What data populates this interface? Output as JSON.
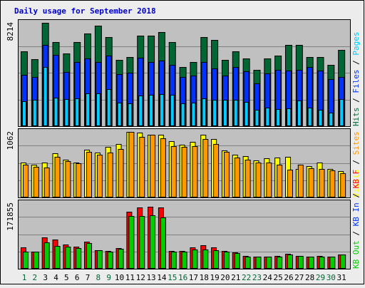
{
  "chart_data": [
    {
      "type": "bar",
      "title": "Daily usage for September 2018",
      "categories": [
        "1",
        "2",
        "3",
        "4",
        "5",
        "6",
        "7",
        "8",
        "9",
        "10",
        "11",
        "12",
        "13",
        "14",
        "15",
        "16",
        "17",
        "18",
        "19",
        "20",
        "21",
        "22",
        "23",
        "24",
        "25",
        "26",
        "27",
        "28",
        "29",
        "30",
        "31"
      ],
      "weekend_categories": [
        "1",
        "2",
        "8",
        "9",
        "15",
        "16",
        "22",
        "23",
        "29",
        "30"
      ],
      "y_max_label": "8214",
      "ylim": [
        0,
        8214
      ],
      "right_axis_labels": [
        "Pages",
        "Files",
        "Hits"
      ],
      "series": [
        {
          "name": "Hits",
          "color": "#006633",
          "values": [
            5950,
            5300,
            8214,
            6700,
            5750,
            6650,
            7350,
            8000,
            7050,
            5250,
            5450,
            7200,
            7200,
            7500,
            6650,
            4700,
            5100,
            7100,
            6850,
            5250,
            5950,
            5350,
            4450,
            5350,
            5600,
            6450,
            6450,
            5500,
            5500,
            4850,
            6050
          ]
        },
        {
          "name": "Files",
          "color": "#0033ff",
          "values": [
            4050,
            3900,
            6450,
            5650,
            4300,
            5050,
            5350,
            5050,
            5600,
            4100,
            4200,
            5400,
            5100,
            5200,
            4850,
            3900,
            4000,
            5050,
            4550,
            4000,
            4700,
            4350,
            3350,
            4150,
            4450,
            4400,
            4450,
            4650,
            4400,
            3700,
            3900
          ]
        },
        {
          "name": "Pages",
          "color": "#00ccff",
          "values": [
            1950,
            2050,
            4700,
            2200,
            2100,
            2150,
            2550,
            2550,
            2900,
            1800,
            1750,
            2400,
            2450,
            2500,
            2450,
            1750,
            1800,
            2150,
            2050,
            2050,
            2050,
            1900,
            1250,
            1450,
            1300,
            1350,
            2000,
            1400,
            1250,
            1050,
            2100
          ]
        }
      ]
    },
    {
      "type": "bar",
      "categories": [
        "1",
        "2",
        "3",
        "4",
        "5",
        "6",
        "7",
        "8",
        "9",
        "10",
        "11",
        "12",
        "13",
        "14",
        "15",
        "16",
        "17",
        "18",
        "19",
        "20",
        "21",
        "22",
        "23",
        "24",
        "25",
        "26",
        "27",
        "28",
        "29",
        "30",
        "31"
      ],
      "y_max_label": "1062",
      "ylim": [
        0,
        1062
      ],
      "right_axis_labels": [
        "Sites",
        "Visits"
      ],
      "series": [
        {
          "name": "Visits",
          "color": "#ffff00",
          "values": [
            560,
            530,
            560,
            710,
            610,
            560,
            770,
            720,
            820,
            860,
            1062,
            1050,
            1015,
            1015,
            910,
            850,
            900,
            1020,
            950,
            760,
            690,
            660,
            600,
            630,
            640,
            650,
            460,
            500,
            560,
            450,
            420
          ]
        },
        {
          "name": "Sites",
          "color": "#ff9900",
          "values": [
            520,
            490,
            480,
            650,
            580,
            550,
            730,
            690,
            720,
            780,
            1062,
            980,
            1015,
            960,
            830,
            820,
            830,
            950,
            860,
            740,
            640,
            610,
            560,
            560,
            520,
            440,
            520,
            470,
            450,
            430,
            380
          ]
        }
      ]
    },
    {
      "type": "bar",
      "categories": [
        "1",
        "2",
        "3",
        "4",
        "5",
        "6",
        "7",
        "8",
        "9",
        "10",
        "11",
        "12",
        "13",
        "14",
        "15",
        "16",
        "17",
        "18",
        "19",
        "20",
        "21",
        "22",
        "23",
        "24",
        "25",
        "26",
        "27",
        "28",
        "29",
        "30",
        "31"
      ],
      "y_max_label": "171855",
      "ylim": [
        0,
        171855
      ],
      "right_axis_labels": [
        "KB F",
        "KB In",
        "KB Out"
      ],
      "series": [
        {
          "name": "KB In",
          "color": "#ff0000",
          "values": [
            55000,
            44000,
            82000,
            76000,
            62000,
            57000,
            70000,
            48000,
            45000,
            52000,
            150000,
            161000,
            162000,
            160000,
            46000,
            46000,
            55000,
            60000,
            55000,
            46000,
            42000,
            32000,
            31000,
            31000,
            32000,
            37000,
            32000,
            31000,
            32000,
            31000,
            36000
          ]
        },
        {
          "name": "KB Out",
          "color": "#00cc00",
          "values": [
            44000,
            43000,
            68000,
            58000,
            56000,
            52000,
            67000,
            47000,
            43000,
            51000,
            137000,
            138000,
            140000,
            135000,
            43000,
            43000,
            50000,
            50000,
            47000,
            43000,
            40000,
            31000,
            30000,
            30000,
            31000,
            35000,
            32000,
            30000,
            30000,
            31000,
            35000
          ]
        }
      ]
    }
  ]
}
